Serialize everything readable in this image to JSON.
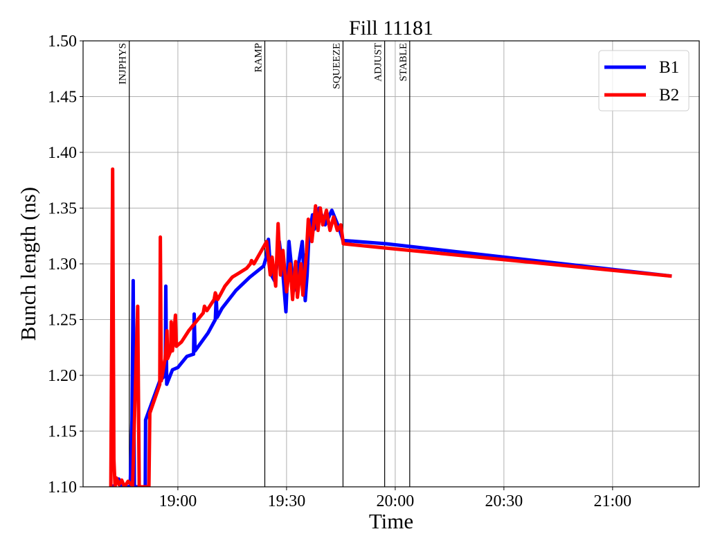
{
  "chart_data": {
    "type": "line",
    "title": "Fill 11181",
    "xlabel": "Time",
    "ylabel": "Bunch length (ns)",
    "xlim": [
      "18:33:50",
      "21:23:55"
    ],
    "ylim": [
      1.1,
      1.5
    ],
    "grid": true,
    "legend_placement": "top-right",
    "x_ticks": [
      {
        "t": "19:00:00",
        "label": "19:00"
      },
      {
        "t": "19:30:00",
        "label": "19:30"
      },
      {
        "t": "20:00:00",
        "label": "20:00"
      },
      {
        "t": "20:30:00",
        "label": "20:30"
      },
      {
        "t": "21:00:00",
        "label": "21:00"
      }
    ],
    "y_ticks": [
      {
        "v": 1.1,
        "label": "1.10"
      },
      {
        "v": 1.15,
        "label": "1.15"
      },
      {
        "v": 1.2,
        "label": "1.20"
      },
      {
        "v": 1.25,
        "label": "1.25"
      },
      {
        "v": 1.3,
        "label": "1.30"
      },
      {
        "v": 1.35,
        "label": "1.35"
      },
      {
        "v": 1.4,
        "label": "1.40"
      },
      {
        "v": 1.45,
        "label": "1.45"
      },
      {
        "v": 1.5,
        "label": "1.50"
      }
    ],
    "events": [
      {
        "t": "18:46:35",
        "label": "INJPHYS"
      },
      {
        "t": "19:24:00",
        "label": "RAMP"
      },
      {
        "t": "19:45:35",
        "label": "SQUEEZE"
      },
      {
        "t": "19:57:05",
        "label": "ADJUST"
      },
      {
        "t": "20:04:00",
        "label": "STABLE"
      }
    ],
    "series": [
      {
        "name": "B1",
        "color": "#0000ff",
        "points": [
          [
            "18:41:10",
            1.1
          ],
          [
            "18:42:30",
            1.101
          ],
          [
            "18:43:40",
            1.107
          ],
          [
            "18:44:10",
            1.1
          ],
          [
            "18:46:50",
            1.1
          ],
          [
            "18:47:20",
            1.16
          ],
          [
            "18:47:40",
            1.285
          ],
          [
            "18:48:00",
            1.1
          ],
          [
            "18:51:00",
            1.1
          ],
          [
            "18:51:05",
            1.16
          ],
          [
            "18:55:00",
            1.195
          ],
          [
            "18:56:30",
            1.2
          ],
          [
            "18:56:40",
            1.28
          ],
          [
            "18:56:55",
            1.192
          ],
          [
            "18:58:30",
            1.205
          ],
          [
            "19:00:00",
            1.207
          ],
          [
            "19:02:30",
            1.217
          ],
          [
            "19:04:20",
            1.219
          ],
          [
            "19:04:30",
            1.255
          ],
          [
            "19:04:45",
            1.222
          ],
          [
            "19:08:20",
            1.238
          ],
          [
            "19:10:20",
            1.25
          ],
          [
            "19:10:35",
            1.27
          ],
          [
            "19:10:50",
            1.252
          ],
          [
            "19:12:10",
            1.26
          ],
          [
            "19:16:00",
            1.276
          ],
          [
            "19:19:50",
            1.288
          ],
          [
            "19:23:40",
            1.298
          ],
          [
            "19:24:30",
            1.307
          ],
          [
            "19:25:00",
            1.322
          ],
          [
            "19:25:40",
            1.291
          ],
          [
            "19:26:50",
            1.284
          ],
          [
            "19:28:00",
            1.32
          ],
          [
            "19:28:50",
            1.298
          ],
          [
            "19:29:50",
            1.257
          ],
          [
            "19:30:40",
            1.32
          ],
          [
            "19:32:00",
            1.276
          ],
          [
            "19:33:20",
            1.3
          ],
          [
            "19:34:20",
            1.32
          ],
          [
            "19:35:10",
            1.267
          ],
          [
            "19:35:40",
            1.29
          ],
          [
            "19:36:10",
            1.325
          ],
          [
            "19:37:10",
            1.344
          ],
          [
            "19:37:40",
            1.331
          ],
          [
            "19:39:00",
            1.35
          ],
          [
            "19:40:40",
            1.335
          ],
          [
            "19:42:30",
            1.348
          ],
          [
            "19:44:30",
            1.332
          ],
          [
            "19:45:35",
            1.321
          ],
          [
            "19:57:30",
            1.318
          ],
          [
            "21:16:20",
            1.289
          ]
        ]
      },
      {
        "name": "B2",
        "color": "#ff0000",
        "points": [
          [
            "18:41:30",
            1.1
          ],
          [
            "18:42:00",
            1.385
          ],
          [
            "18:42:20",
            1.125
          ],
          [
            "18:42:40",
            1.1
          ],
          [
            "18:43:00",
            1.108
          ],
          [
            "18:43:45",
            1.102
          ],
          [
            "18:44:30",
            1.106
          ],
          [
            "18:45:15",
            1.1
          ],
          [
            "18:46:15",
            1.105
          ],
          [
            "18:47:30",
            1.101
          ],
          [
            "18:48:55",
            1.262
          ],
          [
            "18:49:20",
            1.1
          ],
          [
            "18:52:00",
            1.1
          ],
          [
            "18:52:15",
            1.166
          ],
          [
            "18:55:00",
            1.192
          ],
          [
            "18:55:10",
            1.324
          ],
          [
            "18:55:25",
            1.195
          ],
          [
            "18:56:30",
            1.215
          ],
          [
            "18:57:00",
            1.24
          ],
          [
            "18:57:10",
            1.215
          ],
          [
            "18:58:00",
            1.222
          ],
          [
            "18:58:10",
            1.248
          ],
          [
            "18:58:30",
            1.222
          ],
          [
            "18:59:20",
            1.254
          ],
          [
            "18:59:35",
            1.226
          ],
          [
            "19:01:00",
            1.23
          ],
          [
            "19:03:00",
            1.24
          ],
          [
            "19:05:00",
            1.248
          ],
          [
            "19:07:00",
            1.256
          ],
          [
            "19:07:20",
            1.262
          ],
          [
            "19:08:00",
            1.258
          ],
          [
            "19:10:00",
            1.268
          ],
          [
            "19:10:20",
            1.274
          ],
          [
            "19:11:00",
            1.268
          ],
          [
            "19:13:00",
            1.28
          ],
          [
            "19:15:00",
            1.288
          ],
          [
            "19:17:00",
            1.292
          ],
          [
            "19:19:00",
            1.296
          ],
          [
            "19:20:00",
            1.3
          ],
          [
            "19:20:20",
            1.303
          ],
          [
            "19:21:00",
            1.3
          ],
          [
            "19:24:30",
            1.32
          ],
          [
            "19:25:30",
            1.29
          ],
          [
            "19:26:00",
            1.306
          ],
          [
            "19:27:00",
            1.28
          ],
          [
            "19:27:40",
            1.336
          ],
          [
            "19:28:20",
            1.29
          ],
          [
            "19:29:00",
            1.312
          ],
          [
            "19:30:00",
            1.275
          ],
          [
            "19:31:00",
            1.3
          ],
          [
            "19:31:40",
            1.268
          ],
          [
            "19:32:30",
            1.302
          ],
          [
            "19:33:00",
            1.27
          ],
          [
            "19:34:00",
            1.3
          ],
          [
            "19:34:30",
            1.272
          ],
          [
            "19:35:30",
            1.31
          ],
          [
            "19:36:00",
            1.34
          ],
          [
            "19:37:00",
            1.32
          ],
          [
            "19:38:00",
            1.352
          ],
          [
            "19:38:40",
            1.33
          ],
          [
            "19:39:20",
            1.35
          ],
          [
            "19:40:00",
            1.335
          ],
          [
            "19:41:00",
            1.348
          ],
          [
            "19:42:00",
            1.33
          ],
          [
            "19:43:00",
            1.342
          ],
          [
            "19:44:00",
            1.33
          ],
          [
            "19:45:00",
            1.335
          ],
          [
            "19:45:40",
            1.318
          ],
          [
            "19:58:00",
            1.314
          ],
          [
            "21:16:20",
            1.289
          ]
        ]
      }
    ]
  }
}
